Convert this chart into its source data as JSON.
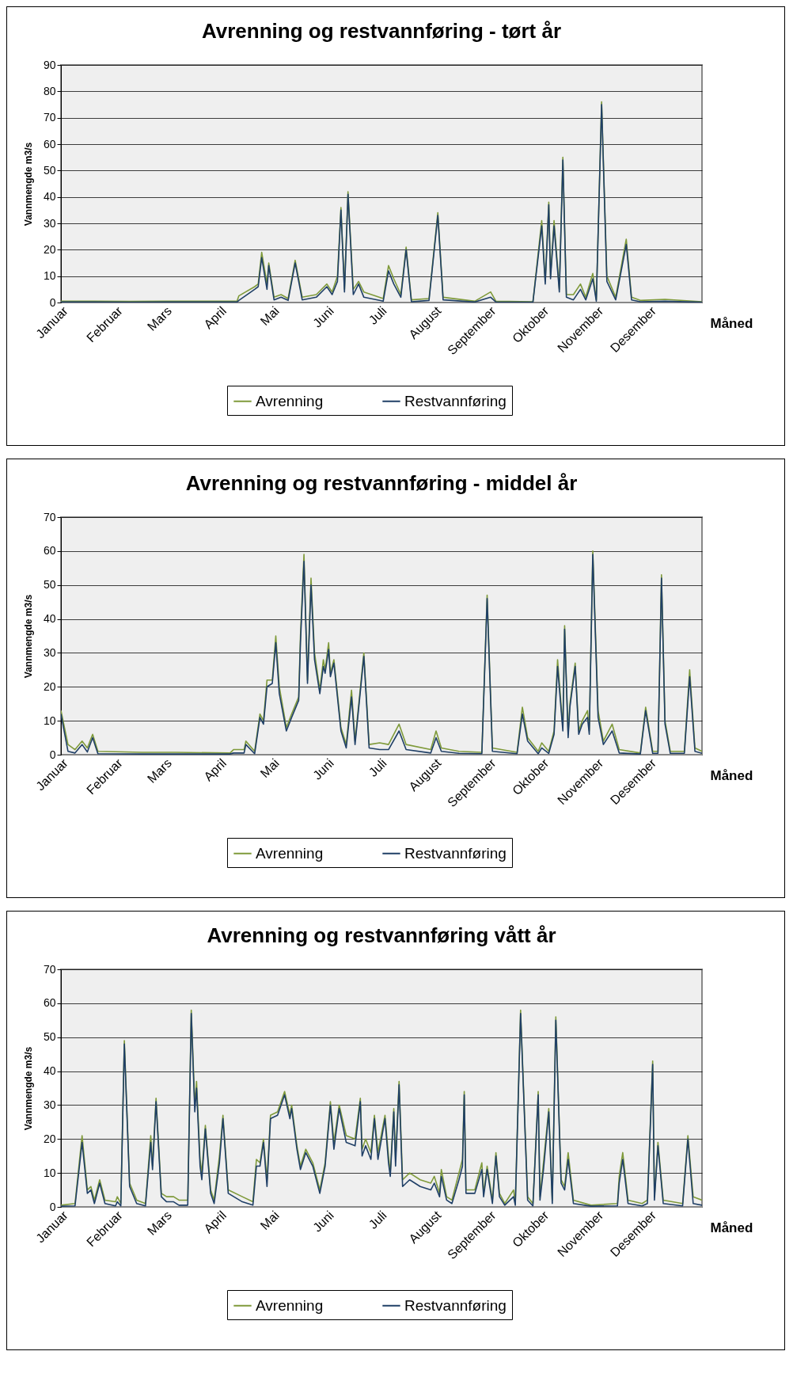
{
  "chart_data": [
    {
      "type": "line",
      "title": "Avrenning og restvannføring - tørt år",
      "xlabel": "Måned",
      "ylabel": "Vannmengde m3/s",
      "grid": "y",
      "legend": "bottom",
      "xlim": [
        "--01-01",
        "--12-31"
      ],
      "xticks": [
        {
          "value": "--01-01",
          "label": "Januar"
        },
        {
          "value": "--02-01",
          "label": "Februar"
        },
        {
          "value": "--03-01",
          "label": "Mars"
        },
        {
          "value": "--04-01",
          "label": "April"
        },
        {
          "value": "--05-01",
          "label": "Mai"
        },
        {
          "value": "--06-01",
          "label": "Juni"
        },
        {
          "value": "--07-01",
          "label": "Juli"
        },
        {
          "value": "--08-01",
          "label": "August"
        },
        {
          "value": "--09-01",
          "label": "September"
        },
        {
          "value": "--10-01",
          "label": "Oktober"
        },
        {
          "value": "--11-01",
          "label": "November"
        },
        {
          "value": "--12-01",
          "label": "Desember"
        }
      ],
      "ylim": [
        0,
        90
      ],
      "yticks": [
        0,
        10,
        20,
        30,
        40,
        50,
        60,
        70,
        80,
        90
      ],
      "x": [
        "--01-01",
        "--01-20",
        "--02-09",
        "--03-01",
        "--03-21",
        "--04-11",
        "--04-12",
        "--04-21",
        "--04-23",
        "--04-25",
        "--04-28",
        "--04-29",
        "--05-02",
        "--05-06",
        "--05-10",
        "--05-14",
        "--05-18",
        "--05-26",
        "--06-01",
        "--06-04",
        "--06-07",
        "--06-09",
        "--06-11",
        "--06-13",
        "--06-16",
        "--06-19",
        "--06-22",
        "--07-03",
        "--07-06",
        "--07-09",
        "--07-13",
        "--07-16",
        "--07-19",
        "--07-29",
        "--08-03",
        "--08-06",
        "--08-24",
        "--09-02",
        "--09-05",
        "--09-26",
        "--10-01",
        "--10-03",
        "--10-05",
        "--10-06",
        "--10-08",
        "--10-11",
        "--10-13",
        "--10-15",
        "--10-19",
        "--10-23",
        "--10-26",
        "--10-30",
        "--11-01",
        "--11-04",
        "--11-07",
        "--11-12",
        "--11-18",
        "--11-21",
        "--11-26",
        "--12-10",
        "--12-31"
      ],
      "series": [
        {
          "name": "Avrenning",
          "color": "#7f9a3a",
          "values": [
            0.5,
            0.5,
            0.4,
            0.5,
            0.5,
            0.5,
            2.5,
            6,
            7,
            19,
            7,
            15,
            2,
            3,
            1.5,
            16,
            2,
            3,
            7,
            4,
            10,
            36,
            5,
            42,
            5,
            8,
            4,
            1.5,
            14,
            9,
            3,
            21,
            1,
            1.5,
            34,
            2,
            0.5,
            4,
            0.5,
            0.3,
            31,
            8,
            38,
            10,
            31,
            5,
            55,
            3,
            3,
            7,
            2,
            11,
            1,
            76,
            10,
            2,
            24,
            2,
            0.8,
            1.2,
            0.3
          ]
        },
        {
          "name": "Restvannføring",
          "color": "#1f3f66",
          "values": [
            0.2,
            0.2,
            0.1,
            0.2,
            0.2,
            0.2,
            0.8,
            5,
            6,
            17,
            5,
            14,
            1,
            2,
            0.8,
            15,
            1,
            2,
            6,
            3,
            8,
            35,
            4,
            41,
            3,
            7,
            2,
            0.5,
            12,
            7,
            2,
            20,
            0.3,
            0.8,
            33,
            1,
            0.2,
            2,
            0.2,
            0.1,
            29,
            7,
            37,
            9,
            29,
            4,
            54,
            2,
            1,
            5,
            1,
            9,
            0.5,
            75,
            8,
            1,
            22,
            1,
            0.3,
            0.5,
            0.1
          ]
        }
      ]
    },
    {
      "type": "line",
      "title": "Avrenning og restvannføring - middel år",
      "xlabel": "Måned",
      "ylabel": "Vannmengde m3/s",
      "grid": "y",
      "legend": "bottom",
      "xlim": [
        "--01-01",
        "--12-31"
      ],
      "xticks": [
        {
          "value": "--01-01",
          "label": "Januar"
        },
        {
          "value": "--02-01",
          "label": "Februar"
        },
        {
          "value": "--03-01",
          "label": "Mars"
        },
        {
          "value": "--04-01",
          "label": "April"
        },
        {
          "value": "--05-01",
          "label": "Mai"
        },
        {
          "value": "--06-01",
          "label": "Juni"
        },
        {
          "value": "--07-01",
          "label": "Juli"
        },
        {
          "value": "--08-01",
          "label": "August"
        },
        {
          "value": "--09-01",
          "label": "September"
        },
        {
          "value": "--10-01",
          "label": "Oktober"
        },
        {
          "value": "--11-01",
          "label": "November"
        },
        {
          "value": "--12-01",
          "label": "Desember"
        }
      ],
      "ylim": [
        0,
        70
      ],
      "yticks": [
        0,
        10,
        20,
        30,
        40,
        50,
        60,
        70
      ],
      "x": [
        "--01-01",
        "--01-05",
        "--01-09",
        "--01-13",
        "--01-16",
        "--01-19",
        "--01-22",
        "--02-16",
        "--03-07",
        "--04-07",
        "--04-09",
        "--04-15",
        "--04-16",
        "--04-21",
        "--04-24",
        "--04-26",
        "--04-28",
        "--05-01",
        "--05-03",
        "--05-05",
        "--05-09",
        "--05-12",
        "--05-16",
        "--05-17",
        "--05-19",
        "--05-21",
        "--05-23",
        "--05-25",
        "--05-28",
        "--05-30",
        "--05-31",
        "--06-02",
        "--06-03",
        "--06-05",
        "--06-09",
        "--06-12",
        "--06-15",
        "--06-17",
        "--06-22",
        "--06-25",
        "--07-01",
        "--07-06",
        "--07-12",
        "--07-16",
        "--07-30",
        "--08-02",
        "--08-05",
        "--08-15",
        "--08-28",
        "--08-31",
        "--09-03",
        "--09-17",
        "--09-20",
        "--09-23",
        "--09-29",
        "--10-01",
        "--10-05",
        "--10-08",
        "--10-10",
        "--10-13",
        "--10-14",
        "--10-16",
        "--10-17",
        "--10-20",
        "--10-22",
        "--10-24",
        "--10-27",
        "--10-28",
        "--10-30",
        "--11-02",
        "--11-05",
        "--11-10",
        "--11-14",
        "--11-26",
        "--11-29",
        "--12-03",
        "--12-06",
        "--12-08",
        "--12-10",
        "--12-13",
        "--12-21",
        "--12-24",
        "--12-27",
        "--12-31"
      ],
      "series": [
        {
          "name": "Avrenning",
          "color": "#7f9a3a",
          "values": [
            13,
            3,
            1.5,
            4,
            2,
            6,
            1,
            0.7,
            0.7,
            0.5,
            1.5,
            1.5,
            4,
            1,
            12,
            10,
            22,
            22,
            35,
            20,
            8,
            12,
            17,
            35,
            59,
            22,
            52,
            30,
            19,
            28,
            25,
            33,
            24,
            28,
            8,
            3,
            19,
            4,
            30,
            3,
            3.5,
            3,
            9,
            3,
            1.5,
            7,
            2,
            1,
            0.7,
            47,
            2,
            0.7,
            14,
            5,
            1,
            3.5,
            1,
            7,
            28,
            8,
            38,
            6,
            15,
            27,
            7,
            10,
            13,
            7,
            60,
            13,
            4,
            9,
            1.5,
            0.5,
            14,
            1,
            1,
            53,
            10,
            1,
            1,
            25,
            2,
            1
          ]
        },
        {
          "name": "Restvannføring",
          "color": "#1f3f66",
          "values": [
            12,
            1,
            0.5,
            3,
            0.8,
            5,
            0.3,
            0.2,
            0.2,
            0.2,
            0.5,
            0.5,
            3,
            0.3,
            11,
            9,
            20,
            21,
            33,
            18,
            7,
            11,
            16,
            33,
            57,
            21,
            50,
            28,
            18,
            26,
            24,
            31,
            23,
            27,
            7,
            2,
            17,
            3,
            29,
            2,
            1.5,
            1.5,
            7,
            1.5,
            0.5,
            5,
            1,
            0.4,
            0.3,
            46,
            1,
            0.3,
            12,
            4,
            0.3,
            2,
            0.4,
            6,
            26,
            7,
            37,
            5,
            14,
            26,
            6,
            9,
            11,
            6,
            59,
            11,
            3,
            7,
            0.5,
            0.2,
            13,
            0.4,
            0.4,
            52,
            9,
            0.4,
            0.4,
            23,
            1,
            0.4
          ]
        }
      ]
    },
    {
      "type": "line",
      "title": "Avrenning og restvannføring vått år",
      "xlabel": "Måned",
      "ylabel": "Vannmengde m3/s",
      "grid": "y",
      "legend": "bottom",
      "xlim": [
        "--01-01",
        "--12-31"
      ],
      "xticks": [
        {
          "value": "--01-01",
          "label": "Januar"
        },
        {
          "value": "--02-01",
          "label": "Februar"
        },
        {
          "value": "--03-01",
          "label": "Mars"
        },
        {
          "value": "--04-01",
          "label": "April"
        },
        {
          "value": "--05-01",
          "label": "Mai"
        },
        {
          "value": "--06-01",
          "label": "Juni"
        },
        {
          "value": "--07-01",
          "label": "Juli"
        },
        {
          "value": "--08-01",
          "label": "August"
        },
        {
          "value": "--09-01",
          "label": "September"
        },
        {
          "value": "--10-01",
          "label": "Oktober"
        },
        {
          "value": "--11-01",
          "label": "November"
        },
        {
          "value": "--12-01",
          "label": "Desember"
        }
      ],
      "ylim": [
        0,
        70
      ],
      "yticks": [
        0,
        10,
        20,
        30,
        40,
        50,
        60,
        70
      ],
      "x": [
        "--01-01",
        "--01-09",
        "--01-13",
        "--01-16",
        "--01-18",
        "--01-20",
        "--01-23",
        "--01-26",
        "--02-01",
        "--02-02",
        "--02-04",
        "--02-06",
        "--02-09",
        "--02-13",
        "--02-18",
        "--02-21",
        "--02-22",
        "--02-24",
        "--02-27",
        "--03-02",
        "--03-06",
        "--03-09",
        "--03-14",
        "--03-16",
        "--03-18",
        "--03-19",
        "--03-21",
        "--03-22",
        "--03-24",
        "--03-27",
        "--03-29",
        "--04-01",
        "--04-03",
        "--04-06",
        "--04-14",
        "--04-20",
        "--04-22",
        "--04-24",
        "--04-26",
        "--04-28",
        "--04-30",
        "--05-04",
        "--05-08",
        "--05-11",
        "--05-12",
        "--05-15",
        "--05-17",
        "--05-20",
        "--05-24",
        "--05-28",
        "--05-31",
        "--06-03",
        "--06-05",
        "--06-08",
        "--06-12",
        "--06-17",
        "--06-20",
        "--06-21",
        "--06-23",
        "--06-26",
        "--06-28",
        "--06-30",
        "--07-04",
        "--07-06",
        "--07-07",
        "--07-09",
        "--07-10",
        "--07-12",
        "--07-14",
        "--07-18",
        "--07-24",
        "--07-30",
        "--08-01",
        "--08-04",
        "--08-05",
        "--08-08",
        "--08-11",
        "--08-15",
        "--08-17",
        "--08-18",
        "--08-19",
        "--08-24",
        "--08-28",
        "--08-29",
        "--08-31",
        "--09-03",
        "--09-05",
        "--09-07",
        "--09-10",
        "--09-15",
        "--09-16",
        "--09-19",
        "--09-23",
        "--09-26",
        "--09-29",
        "--09-30",
        "--10-02",
        "--10-05",
        "--10-07",
        "--10-09",
        "--10-12",
        "--10-14",
        "--10-16",
        "--10-19",
        "--10-29",
        "--11-13",
        "--11-14",
        "--11-16",
        "--11-19",
        "--11-27",
        "--11-30",
        "--12-03",
        "--12-04",
        "--12-06",
        "--12-09",
        "--12-20",
        "--12-23",
        "--12-26",
        "--12-31"
      ],
      "series": [
        {
          "name": "Avrenning",
          "color": "#7f9a3a",
          "values": [
            0.5,
            1,
            21,
            5,
            6,
            2,
            8,
            2,
            1.5,
            3,
            1,
            49,
            7,
            2,
            1,
            21,
            12,
            32,
            4,
            3,
            3,
            2,
            2,
            58,
            30,
            37,
            14,
            10,
            24,
            5,
            2,
            15,
            27,
            5,
            3,
            1.5,
            14,
            13,
            20,
            8,
            27,
            28,
            34,
            27,
            30,
            18,
            12,
            17,
            13,
            5,
            13,
            31,
            19,
            30,
            21,
            20,
            32,
            17,
            20,
            16,
            27,
            16,
            27,
            15,
            10,
            29,
            14,
            37,
            8,
            10,
            8,
            7,
            9,
            4,
            11,
            3,
            2,
            10,
            14,
            34,
            5,
            5,
            13,
            4,
            12,
            2,
            16,
            4,
            1,
            5,
            1,
            58,
            3,
            1,
            34,
            3,
            13,
            29,
            2,
            56,
            8,
            6,
            16,
            2,
            0.5,
            1,
            9,
            16,
            2,
            1,
            2,
            43,
            3,
            19,
            2,
            1,
            21,
            3,
            2
          ]
        },
        {
          "name": "Restvannføring",
          "color": "#1f3f66",
          "values": [
            0.2,
            0.3,
            19,
            4,
            5,
            1,
            7,
            1,
            0.3,
            1.5,
            0.3,
            48,
            6,
            1,
            0.3,
            19,
            11,
            31,
            3,
            1.5,
            1.5,
            0.5,
            0.5,
            57,
            28,
            35,
            12,
            8,
            23,
            4,
            1,
            13,
            26,
            4,
            1.5,
            0.5,
            12,
            12,
            19,
            6,
            26,
            27,
            33,
            26,
            29,
            17,
            11,
            16,
            12,
            4,
            12,
            30,
            17,
            29,
            19,
            18,
            31,
            15,
            18,
            14,
            26,
            14,
            26,
            13,
            9,
            28,
            12,
            36,
            6,
            8,
            6,
            5,
            7,
            3,
            9,
            2,
            1,
            8,
            12,
            33,
            4,
            4,
            11,
            3,
            11,
            1,
            15,
            3,
            0.5,
            3,
            0.5,
            57,
            2,
            0.3,
            33,
            2,
            11,
            28,
            1,
            55,
            7,
            5,
            14,
            1,
            0.2,
            0.3,
            7,
            14,
            1,
            0.3,
            1,
            42,
            2,
            18,
            1,
            0.3,
            20,
            1,
            0.5
          ]
        }
      ]
    }
  ]
}
